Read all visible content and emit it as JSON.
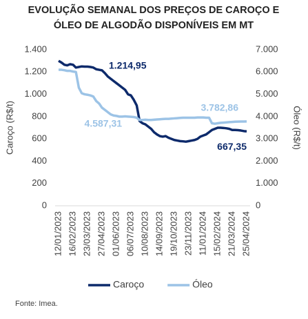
{
  "chart_data": {
    "type": "line",
    "title": "EVOLUÇÃO SEMANAL DOS PREÇOS DE CAROÇO E ÓLEO DE ALGODÃO DISPONÍVEIS EM MT",
    "ylabel": "Caroço (R$/t)",
    "y2label": "Óleo (R$/t)",
    "source": "Fonte: Imea.",
    "categories": [
      "12/01/2023",
      null,
      null,
      null,
      null,
      "16/02/2023",
      null,
      null,
      null,
      null,
      "23/03/2023",
      null,
      null,
      null,
      null,
      "27/04/2023",
      null,
      null,
      null,
      null,
      "01/06/2023",
      null,
      null,
      null,
      null,
      "06/07/2023",
      null,
      null,
      null,
      null,
      "10/08/2023",
      null,
      null,
      null,
      null,
      "14/09/2023",
      null,
      null,
      null,
      null,
      "19/10/2023",
      null,
      null,
      null,
      null,
      "23/11/2023",
      null,
      null,
      null,
      null,
      "11/01/2024",
      null,
      null,
      null,
      null,
      "15/02/2024",
      null,
      null,
      null,
      null,
      "21/03/2024",
      null,
      null,
      null,
      null,
      "25/04/2024"
    ],
    "series": [
      {
        "name": "Caroço",
        "color": "#0d2a6b",
        "axis": "y",
        "values": [
          1300,
          1285,
          1265,
          1260,
          1270,
          1265,
          1240,
          1245,
          1250,
          1248,
          1248,
          1245,
          1240,
          1225,
          1220,
          1214.95,
          1190,
          1160,
          1140,
          1120,
          1100,
          1080,
          1060,
          1040,
          1000,
          990,
          950,
          900,
          760,
          740,
          730,
          710,
          690,
          660,
          640,
          625,
          620,
          625,
          610,
          600,
          590,
          585,
          580,
          578,
          575,
          580,
          585,
          590,
          600,
          620,
          630,
          640,
          660,
          680,
          690,
          700,
          700,
          698,
          695,
          690,
          680,
          680,
          678,
          675,
          670,
          667.35
        ],
        "value_labels": [
          null,
          null,
          null,
          null,
          null,
          null,
          null,
          null,
          null,
          null,
          null,
          null,
          null,
          null,
          null,
          "1.214,95",
          null,
          null,
          null,
          null,
          null,
          null,
          null,
          null,
          null,
          null,
          null,
          null,
          null,
          null,
          null,
          null,
          null,
          null,
          null,
          null,
          null,
          null,
          null,
          null,
          null,
          null,
          null,
          null,
          null,
          null,
          null,
          null,
          null,
          null,
          null,
          null,
          null,
          null,
          null,
          null,
          null,
          null,
          null,
          null,
          null,
          null,
          null,
          null,
          null,
          "667,35"
        ]
      },
      {
        "name": "Óleo",
        "color": "#9cc3e6",
        "axis": "y2",
        "values": [
          6100,
          6100,
          6080,
          6050,
          6050,
          6020,
          6000,
          5300,
          5050,
          5000,
          4980,
          4950,
          4900,
          4700,
          4587.31,
          4400,
          4300,
          4200,
          4100,
          4050,
          4030,
          4000,
          4000,
          4010,
          4000,
          3990,
          3980,
          3950,
          3850,
          3850,
          3860,
          3850,
          3850,
          3860,
          3870,
          3880,
          3890,
          3900,
          3900,
          3910,
          3920,
          3930,
          3940,
          3950,
          3950,
          3950,
          3950,
          3950,
          3960,
          3960,
          3960,
          3950,
          3950,
          3700,
          3680,
          3700,
          3720,
          3730,
          3740,
          3750,
          3760,
          3770,
          3775,
          3780,
          3780,
          3782.86
        ],
        "value_labels": [
          null,
          null,
          null,
          null,
          null,
          null,
          null,
          null,
          null,
          null,
          null,
          null,
          null,
          null,
          "4.587,31",
          null,
          null,
          null,
          null,
          null,
          null,
          null,
          null,
          null,
          null,
          null,
          null,
          null,
          null,
          null,
          null,
          null,
          null,
          null,
          null,
          null,
          null,
          null,
          null,
          null,
          null,
          null,
          null,
          null,
          null,
          null,
          null,
          null,
          null,
          null,
          null,
          null,
          null,
          null,
          null,
          null,
          null,
          null,
          null,
          null,
          null,
          null,
          null,
          null,
          null,
          "3.782,86"
        ]
      }
    ],
    "ylim": [
      0,
      1400
    ],
    "yticks": [
      0,
      200,
      400,
      600,
      800,
      {
        "value": 1000,
        "label": "1.000"
      },
      {
        "value": 1200,
        "label": "1.200"
      },
      {
        "value": 1400,
        "label": "1.400"
      }
    ],
    "y2lim": [
      0,
      7000
    ],
    "y2ticks": [
      0,
      {
        "value": 1000,
        "label": "1.000"
      },
      {
        "value": 2000,
        "label": "2.000"
      },
      {
        "value": 3000,
        "label": "3.000"
      },
      {
        "value": 4000,
        "label": "4.000"
      },
      {
        "value": 5000,
        "label": "5.000"
      },
      {
        "value": 6000,
        "label": "6.000"
      },
      {
        "value": 7000,
        "label": "7.000"
      }
    ],
    "grid": false,
    "legend": "bottom"
  }
}
